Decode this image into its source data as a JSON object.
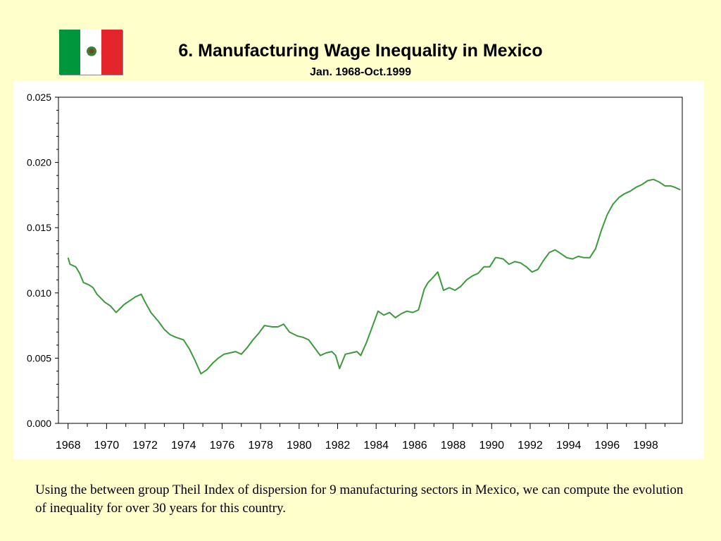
{
  "flag": {
    "name": "mexico-flag",
    "colors": {
      "left": "#00963b",
      "middle": "#ffffff",
      "right": "#e4252b"
    }
  },
  "title": "6. Manufacturing Wage Inequality in Mexico",
  "subtitle": "Jan. 1968-Oct.1999",
  "caption": "Using the between group Theil Index of dispersion for 9 manufacturing sectors in Mexico, we can compute the evolution of inequality for over 30 years for this country.",
  "colors": {
    "background": "#ffffcc",
    "plot_background": "#ffffff",
    "line": "#3c9a3c",
    "axis": "#000000"
  },
  "chart_data": {
    "type": "line",
    "title": "6. Manufacturing Wage Inequality in Mexico",
    "subtitle": "Jan. 1968-Oct.1999",
    "xlabel": "",
    "ylabel": "",
    "xlim": [
      1967.5,
      1999.9
    ],
    "ylim": [
      0,
      0.025
    ],
    "yticks": [
      0.0,
      0.005,
      0.01,
      0.015,
      0.02,
      0.025
    ],
    "ytick_labels": [
      "0.000",
      "0.005",
      "0.010",
      "0.015",
      "0.020",
      "0.025"
    ],
    "xtick_labels": [
      "1968",
      "1970",
      "1972",
      "1974",
      "1976",
      "1978",
      "1980",
      "1982",
      "1984",
      "1986",
      "1988",
      "1990",
      "1992",
      "1994",
      "1996",
      "1998"
    ],
    "grid": false,
    "legend": "none",
    "series": [
      {
        "color": "#3c9a3c",
        "x": [
          1968.0,
          1968.1,
          1968.4,
          1968.6,
          1968.8,
          1969.1,
          1969.3,
          1969.5,
          1969.7,
          1969.9,
          1970.2,
          1970.5,
          1970.7,
          1970.9,
          1971.2,
          1971.5,
          1971.8,
          1972.0,
          1972.3,
          1972.7,
          1973.0,
          1973.3,
          1973.6,
          1974.0,
          1974.3,
          1974.6,
          1974.9,
          1975.2,
          1975.5,
          1975.8,
          1976.1,
          1976.4,
          1976.7,
          1977.0,
          1977.3,
          1977.6,
          1977.9,
          1978.2,
          1978.6,
          1978.9,
          1979.2,
          1979.5,
          1979.9,
          1980.2,
          1980.5,
          1980.8,
          1981.1,
          1981.4,
          1981.7,
          1981.9,
          1982.1,
          1982.4,
          1982.7,
          1983.0,
          1983.2,
          1983.5,
          1983.8,
          1984.1,
          1984.4,
          1984.7,
          1985.0,
          1985.3,
          1985.6,
          1985.9,
          1986.2,
          1986.5,
          1986.7,
          1986.9,
          1987.2,
          1987.5,
          1987.8,
          1988.1,
          1988.4,
          1988.7,
          1989.0,
          1989.3,
          1989.6,
          1989.9,
          1990.2,
          1990.3,
          1990.6,
          1990.9,
          1991.2,
          1991.5,
          1991.8,
          1992.1,
          1992.4,
          1992.7,
          1993.0,
          1993.3,
          1993.6,
          1993.9,
          1994.2,
          1994.5,
          1994.8,
          1995.1,
          1995.4,
          1995.7,
          1996.0,
          1996.3,
          1996.6,
          1996.9,
          1997.2,
          1997.5,
          1997.8,
          1998.1,
          1998.4,
          1998.7,
          1999.0,
          1999.3,
          1999.5,
          1999.8
        ],
        "y": [
          0.0127,
          0.0122,
          0.012,
          0.0115,
          0.0108,
          0.0106,
          0.0104,
          0.0099,
          0.0096,
          0.0093,
          0.009,
          0.0085,
          0.0088,
          0.0091,
          0.0094,
          0.0097,
          0.0099,
          0.0093,
          0.0085,
          0.0078,
          0.0072,
          0.0068,
          0.0066,
          0.0064,
          0.0057,
          0.0048,
          0.0038,
          0.0041,
          0.0046,
          0.005,
          0.0053,
          0.0054,
          0.0055,
          0.0053,
          0.0058,
          0.0064,
          0.0069,
          0.0075,
          0.0074,
          0.0074,
          0.0076,
          0.007,
          0.0067,
          0.0066,
          0.0064,
          0.0058,
          0.0052,
          0.0054,
          0.0055,
          0.0052,
          0.0042,
          0.0053,
          0.0054,
          0.0055,
          0.0052,
          0.0062,
          0.0074,
          0.0086,
          0.0083,
          0.0085,
          0.0081,
          0.0084,
          0.0086,
          0.0085,
          0.0087,
          0.0103,
          0.0108,
          0.0111,
          0.0116,
          0.0102,
          0.0104,
          0.0102,
          0.0105,
          0.011,
          0.0113,
          0.0115,
          0.012,
          0.012,
          0.0127,
          0.0127,
          0.0126,
          0.0122,
          0.0124,
          0.0123,
          0.012,
          0.0116,
          0.0118,
          0.0125,
          0.0131,
          0.0133,
          0.013,
          0.0127,
          0.0126,
          0.0128,
          0.0127,
          0.0127,
          0.0134,
          0.0148,
          0.016,
          0.0168,
          0.0173,
          0.0176,
          0.0178,
          0.0181,
          0.0183,
          0.0186,
          0.0187,
          0.0185,
          0.0182,
          0.0182,
          0.0181,
          0.0179
        ]
      }
    ]
  }
}
